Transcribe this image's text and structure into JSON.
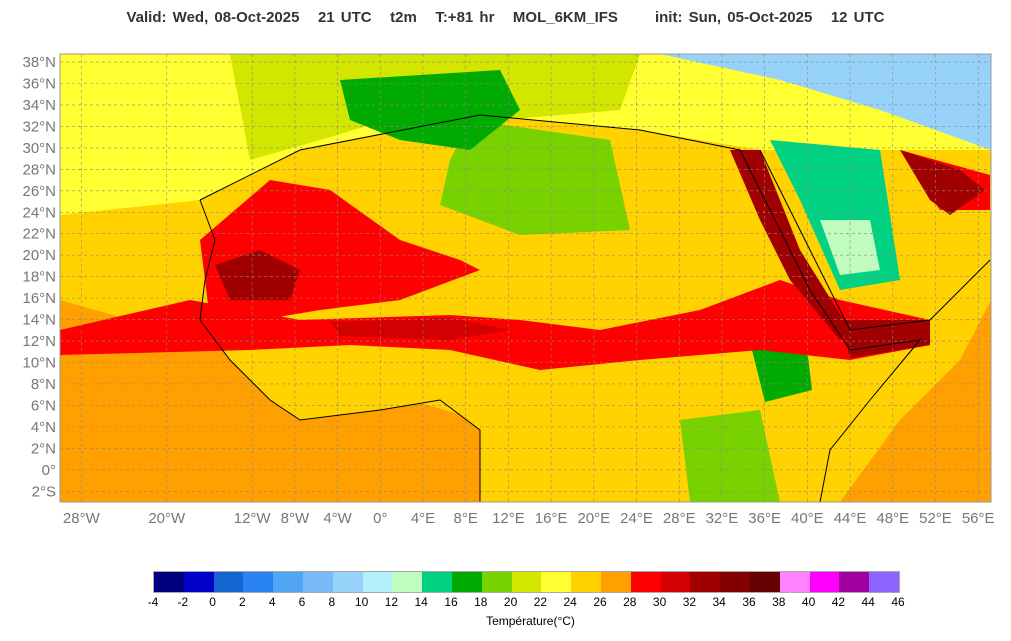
{
  "title": "Valid: Wed, 08-Oct-2025   21 UTC   t2m   T:+81 hr   MOL_6KM_IFS      init: Sun, 05-Oct-2025   12 UTC",
  "map": {
    "extent": {
      "lon": [
        -30,
        57.2
      ],
      "lat": [
        -3,
        38.75
      ]
    },
    "lat_ticks": [
      {
        "label": "38°N",
        "value": 38
      },
      {
        "label": "36°N",
        "value": 36
      },
      {
        "label": "34°N",
        "value": 34
      },
      {
        "label": "32°N",
        "value": 32
      },
      {
        "label": "30°N",
        "value": 30
      },
      {
        "label": "28°N",
        "value": 28
      },
      {
        "label": "26°N",
        "value": 26
      },
      {
        "label": "24°N",
        "value": 24
      },
      {
        "label": "22°N",
        "value": 22
      },
      {
        "label": "20°N",
        "value": 20
      },
      {
        "label": "18°N",
        "value": 18
      },
      {
        "label": "16°N",
        "value": 16
      },
      {
        "label": "14°N",
        "value": 14
      },
      {
        "label": "12°N",
        "value": 12
      },
      {
        "label": "10°N",
        "value": 10
      },
      {
        "label": "8°N",
        "value": 8
      },
      {
        "label": "6°N",
        "value": 6
      },
      {
        "label": "4°N",
        "value": 4
      },
      {
        "label": "2°N",
        "value": 2
      },
      {
        "label": "0°",
        "value": 0
      },
      {
        "label": "2°S",
        "value": -2
      }
    ],
    "lon_ticks": [
      {
        "label": "28°W",
        "value": -28
      },
      {
        "label": "20°W",
        "value": -20
      },
      {
        "label": "12°W",
        "value": -12
      },
      {
        "label": "8°W",
        "value": -8
      },
      {
        "label": "4°W",
        "value": -4
      },
      {
        "label": "0°",
        "value": 0
      },
      {
        "label": "4°E",
        "value": 4
      },
      {
        "label": "8°E",
        "value": 8
      },
      {
        "label": "12°E",
        "value": 12
      },
      {
        "label": "16°E",
        "value": 16
      },
      {
        "label": "20°E",
        "value": 20
      },
      {
        "label": "24°E",
        "value": 24
      },
      {
        "label": "28°E",
        "value": 28
      },
      {
        "label": "32°E",
        "value": 32
      },
      {
        "label": "36°E",
        "value": 36
      },
      {
        "label": "40°E",
        "value": 40
      },
      {
        "label": "44°E",
        "value": 44
      },
      {
        "label": "48°E",
        "value": 48
      },
      {
        "label": "52°E",
        "value": 52
      },
      {
        "label": "56°E",
        "value": 56
      }
    ]
  },
  "colorbar": {
    "title": "Température(°C)",
    "labels": [
      "-4",
      "-2",
      "0",
      "2",
      "4",
      "6",
      "8",
      "10",
      "12",
      "14",
      "16",
      "18",
      "20",
      "22",
      "24",
      "26",
      "28",
      "30",
      "32",
      "34",
      "36",
      "38",
      "40",
      "42",
      "44",
      "46"
    ],
    "colors": [
      "#00007f",
      "#0000c8",
      "#1464d2",
      "#2882f0",
      "#50a5f5",
      "#78b9fa",
      "#96d2fa",
      "#b4f0fa",
      "#c0fcbe",
      "#00d282",
      "#00aa00",
      "#78d200",
      "#d2e600",
      "#ffff32",
      "#ffd200",
      "#ffa000",
      "#ff0000",
      "#d20000",
      "#a00000",
      "#820000",
      "#640000",
      "#ff82ff",
      "#ff00ff",
      "#a000a0",
      "#8c64ff"
    ]
  }
}
